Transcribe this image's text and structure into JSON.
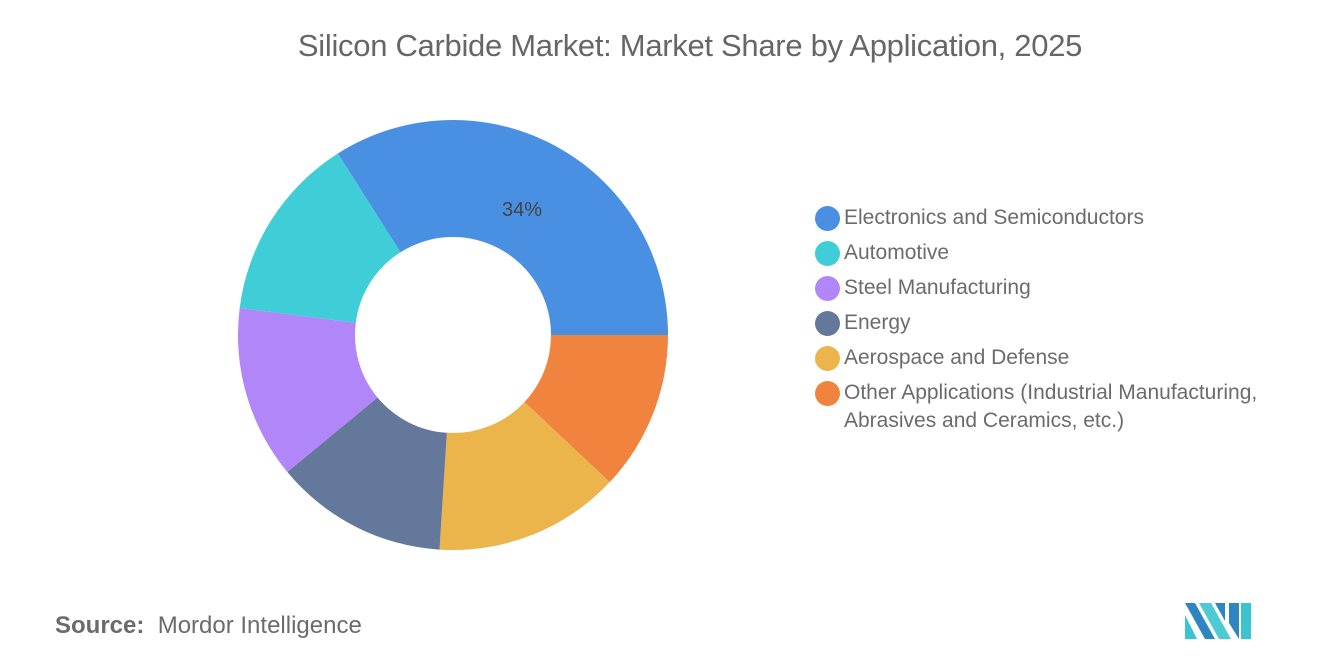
{
  "title": "Silicon Carbide Market: Market Share by Application, 2025",
  "source": {
    "label": "Source:",
    "value": "Mordor Intelligence"
  },
  "chart_data": {
    "type": "pie",
    "subtype": "donut",
    "title": "Silicon Carbide Market: Market Share by Application, 2025",
    "categories": [
      "Electronics and Semiconductors",
      "Other Applications (Industrial Manufacturing, Abrasives and Ceramics, etc.)",
      "Aerospace and Defense",
      "Energy",
      "Steel Manufacturing",
      "Automotive"
    ],
    "values": [
      34,
      12,
      14,
      13,
      13,
      14
    ],
    "colors": [
      "#4A90E2",
      "#F0843F",
      "#EBB54B",
      "#64789B",
      "#B086F8",
      "#3FCDD8"
    ],
    "data_labels": [
      {
        "category": "Electronics and Semiconductors",
        "label": "34%"
      }
    ],
    "legend_position": "right"
  },
  "legend": [
    {
      "label": "Electronics and Semiconductors",
      "color": "#4A90E2"
    },
    {
      "label": "Automotive",
      "color": "#3FCDD8"
    },
    {
      "label": "Steel Manufacturing",
      "color": "#B086F8"
    },
    {
      "label": "Energy",
      "color": "#64789B"
    },
    {
      "label": "Aerospace and Defense",
      "color": "#EBB54B"
    },
    {
      "label": "Other Applications (Industrial Manufacturing, Abrasives and Ceramics, etc.)",
      "color": "#F0843F"
    }
  ]
}
